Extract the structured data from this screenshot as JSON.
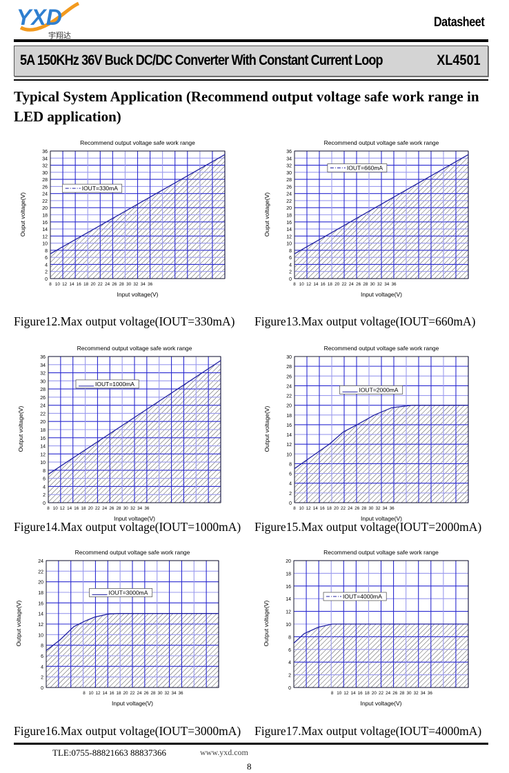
{
  "header": {
    "logo_text": "YXD",
    "logo_cn": "宇翔达",
    "doc_type": "Datasheet",
    "product_title": "5A 150KHz 36V Buck DC/DC Converter With Constant Current Loop",
    "part_number": "XL4501"
  },
  "section_title": "Typical System Application (Recommend output voltage safe work range in LED application)",
  "colors": {
    "grid": "#2a2ad0",
    "grid_light": "#9a9aee",
    "curve": "#2020a0",
    "hatch": "#222222",
    "banner": "#d4d4d4"
  },
  "chart_data": [
    {
      "type": "area",
      "title": "Recommend output voltage safe work range",
      "xlabel": "Input voltage(V)",
      "ylabel": "Ouput voltage(V)",
      "legend": "IOUT=330mA",
      "legend_style": "dashdot",
      "caption": "Figure12.Max output voltage(IOUT=330mA)",
      "xlim": [
        8,
        57
      ],
      "ylim": [
        0,
        36
      ],
      "ystep": 2,
      "xticks": [
        8,
        10,
        12,
        14,
        16,
        18,
        20,
        22,
        24,
        26,
        28,
        30,
        32,
        34,
        36
      ],
      "x": [
        8,
        57
      ],
      "y": [
        7,
        35
      ]
    },
    {
      "type": "area",
      "title": "Recommend output voltage safe work range",
      "xlabel": "Input voltage(V)",
      "ylabel": "Ouput voltage(V)",
      "legend": "IOUT=660mA",
      "legend_style": "dashdot",
      "caption": "Figure13.Max output voltage(IOUT=660mA)",
      "xlim": [
        8,
        57
      ],
      "ylim": [
        0,
        36
      ],
      "ystep": 2,
      "xticks": [
        8,
        10,
        12,
        14,
        16,
        18,
        20,
        22,
        24,
        26,
        28,
        30,
        32,
        34,
        36
      ],
      "x": [
        8,
        57
      ],
      "y": [
        7,
        35
      ]
    },
    {
      "type": "area",
      "title": "Recommend output voltage safe work range",
      "xlabel": "Input voltage(V)",
      "ylabel": "Output voltage(V)",
      "legend": "IOUT=1000mA",
      "legend_style": "solid",
      "caption": "Figure14.Max output voltage(IOUT=1000mA)",
      "xlim": [
        8,
        57
      ],
      "ylim": [
        0,
        36
      ],
      "ystep": 2,
      "xticks": [
        8,
        10,
        12,
        14,
        16,
        18,
        20,
        22,
        24,
        26,
        28,
        30,
        32,
        34,
        36
      ],
      "x": [
        8,
        57
      ],
      "y": [
        7,
        35
      ]
    },
    {
      "type": "area",
      "title": "Recommend output voltage safe work range",
      "xlabel": "Input voltage(V)",
      "ylabel": "Output voltage(V)",
      "legend": "IOUT=2000mA",
      "legend_style": "solid",
      "caption": "Figure15.Max output voltage(IOUT=2000mA)",
      "xlim": [
        8,
        58
      ],
      "ylim": [
        0,
        30
      ],
      "ystep": 2,
      "xticks": [
        8,
        10,
        12,
        14,
        16,
        18,
        20,
        22,
        24,
        26,
        28,
        30,
        32,
        34,
        36
      ],
      "x": [
        8,
        12,
        16,
        18,
        22,
        26,
        31,
        36,
        42,
        58
      ],
      "y": [
        7,
        9,
        11,
        12,
        14.5,
        16,
        18,
        19.5,
        20,
        20
      ]
    },
    {
      "type": "area",
      "title": "Recommend output voltage safe work range",
      "xlabel": "Input voltage(V)",
      "ylabel": "Output voltage(V)",
      "legend": "IOUT=3000mA",
      "legend_style": "solid",
      "caption": "Figure16.Max output voltage(IOUT=3000mA)",
      "xlim": [
        -3,
        47
      ],
      "ylim": [
        0,
        24
      ],
      "ystep": 2,
      "xticks": [
        8,
        10,
        12,
        14,
        16,
        18,
        20,
        22,
        24,
        26,
        28,
        30,
        32,
        34,
        36
      ],
      "x": [
        -3,
        1,
        5,
        8,
        11,
        15,
        18,
        47
      ],
      "y": [
        7,
        9,
        11.5,
        12.5,
        13.3,
        13.9,
        14,
        14
      ]
    },
    {
      "type": "area",
      "title": "Recommend output voltage safe work range",
      "xlabel": "Input voltage(V)",
      "ylabel": "Output voltage(V)",
      "legend": "IOUT=4000mA",
      "legend_style": "dashdot",
      "caption": "Figure17.Max output voltage(IOUT=4000mA)",
      "xlim": [
        -3,
        47
      ],
      "ylim": [
        0,
        20
      ],
      "ystep": 2,
      "xticks": [
        8,
        10,
        12,
        14,
        16,
        18,
        20,
        22,
        24,
        26,
        28,
        30,
        32,
        34,
        36
      ],
      "x": [
        -3,
        0,
        4,
        8,
        47
      ],
      "y": [
        7,
        8.5,
        9.5,
        10,
        10
      ]
    }
  ],
  "footer": {
    "tel": "TLE:0755-88821663  88837366",
    "web": "www.yxd.com",
    "page_number": "8"
  }
}
